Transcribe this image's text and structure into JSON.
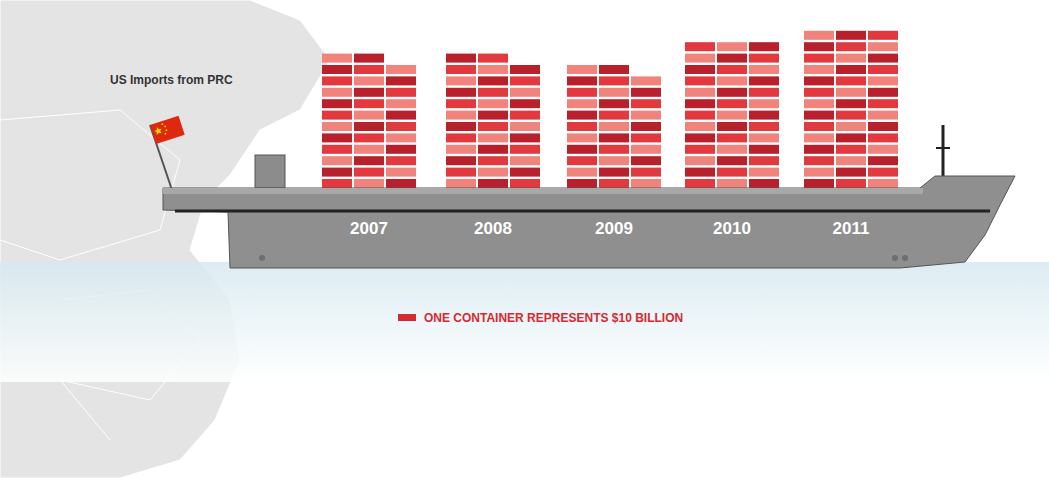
{
  "chart_data": {
    "type": "pictogram",
    "title": "US Imports from PRC",
    "categories": [
      "2007",
      "2008",
      "2009",
      "2010",
      "2011"
    ],
    "values": [
      350,
      350,
      320,
      390,
      420
    ],
    "unit_value": 10,
    "unit_label": "ONE CONTAINER REPRESENTS $10 BILLION",
    "color": "#d42a30"
  }
}
